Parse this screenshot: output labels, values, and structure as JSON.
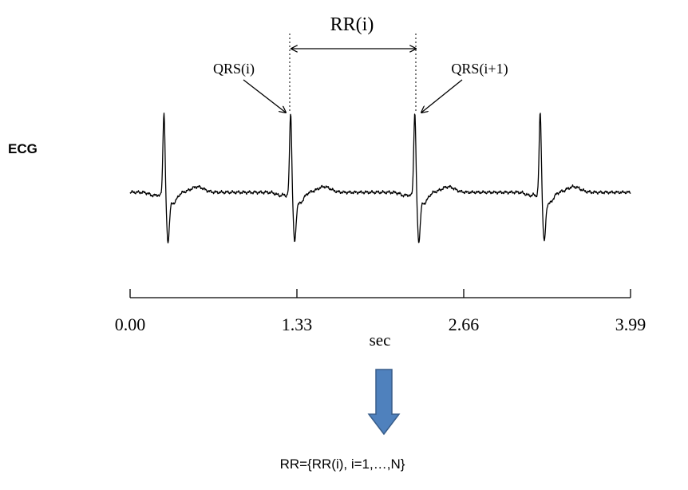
{
  "side_label": "ECG",
  "interval_label": "RR(i)",
  "beat_labels": [
    "QRS(i)",
    "QRS(i+1)"
  ],
  "x_axis": {
    "tick_labels": [
      "0.00",
      "1.33",
      "2.66",
      "3.99"
    ],
    "unit_label": "sec"
  },
  "waveform": {
    "r_peak_times": [
      0.27,
      1.28,
      2.27,
      3.27
    ],
    "t_start": 0.0,
    "t_end": 3.99
  },
  "formula": "RR={RR(i), i=1,…,N}",
  "colors": {
    "trace": "#000000",
    "arrow_fill": "#4f81bd",
    "arrow_stroke": "#385d8a"
  }
}
